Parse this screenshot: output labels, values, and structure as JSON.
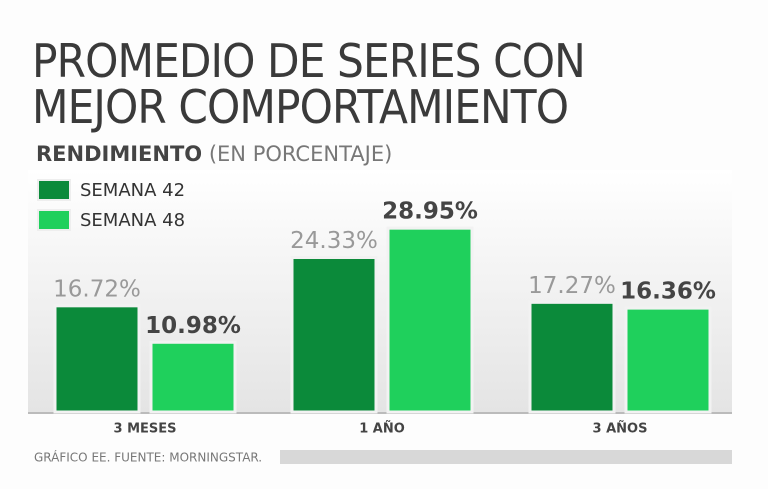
{
  "chart_data": {
    "type": "bar",
    "title": "PROMEDIO DE SERIES CON MEJOR COMPORTAMIENTO",
    "subtitle": "RENDIMIENTO",
    "subtitle_note": "(EN PORCENTAJE)",
    "source": "GRÁFICO EE. FUENTE: MORNINGSTAR.",
    "categories": [
      "3 MESES",
      "1 AÑO",
      "3 AÑOS"
    ],
    "series": [
      {
        "name": "SEMANA 42",
        "color": "#0b8a3a",
        "values": [
          16.72,
          24.33,
          17.27
        ],
        "value_labels": [
          "16.72%",
          "24.33%",
          "17.27%"
        ]
      },
      {
        "name": "SEMANA 48",
        "color": "#1fd05c",
        "values": [
          10.98,
          28.95,
          16.36
        ],
        "value_labels": [
          "10.98%",
          "28.95%",
          "16.36%"
        ]
      }
    ],
    "legend": "top-left"
  }
}
